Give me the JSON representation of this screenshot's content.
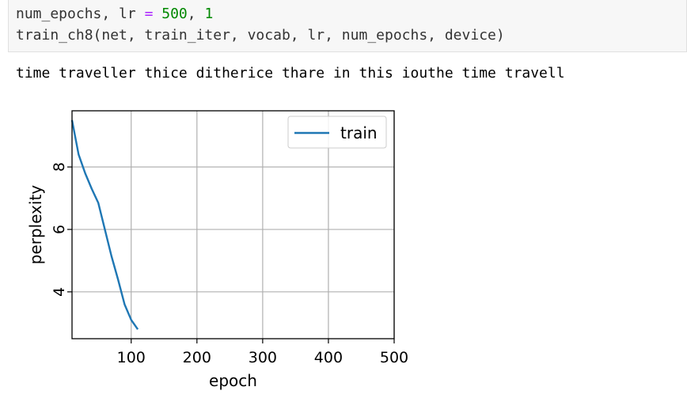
{
  "code_cell": {
    "line1": {
      "lhs": "num_epochs, lr ",
      "op": "=",
      "sp": " ",
      "num1": "500",
      "sep": ", ",
      "num2": "1"
    },
    "line2": "train_ch8(net, train_iter, vocab, lr, num_epochs, device)"
  },
  "output": {
    "text": "time traveller thice ditherice thare in this iouthe time travell"
  },
  "colors": {
    "code_background": "#f7f7f7",
    "series": "#1f77b4",
    "grid": "#b0b0b0"
  },
  "chart_data": {
    "type": "line",
    "xlabel": "epoch",
    "ylabel": "perplexity",
    "xlim": [
      10,
      500
    ],
    "ylim": [
      2.5,
      9.8
    ],
    "xticks": [
      100,
      200,
      300,
      400,
      500
    ],
    "yticks": [
      4,
      6,
      8
    ],
    "grid": true,
    "legend_position": "upper-right",
    "series": [
      {
        "name": "train",
        "x": [
          10,
          20,
          30,
          40,
          50,
          60,
          70,
          80,
          90,
          100,
          110
        ],
        "y": [
          9.5,
          8.4,
          7.8,
          7.3,
          6.85,
          6.0,
          5.15,
          4.4,
          3.6,
          3.1,
          2.8
        ]
      }
    ]
  }
}
